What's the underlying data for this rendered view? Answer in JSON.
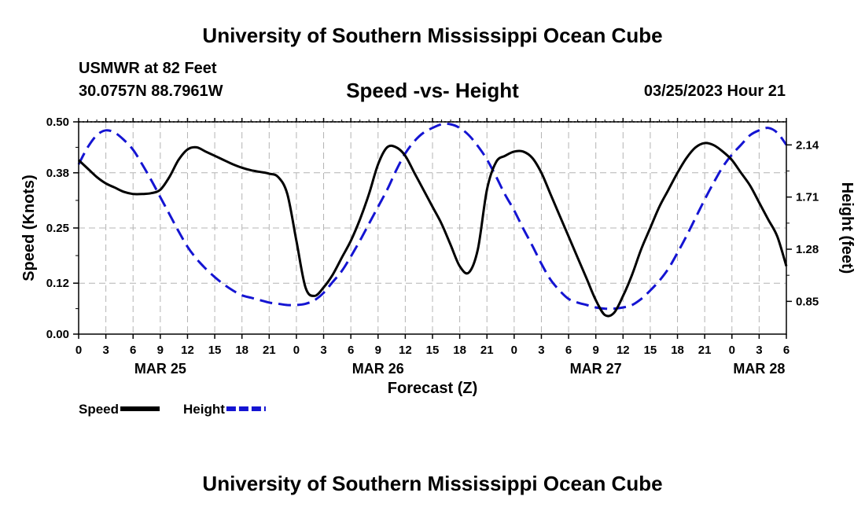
{
  "page": {
    "title_top": "University of Southern Mississippi Ocean Cube",
    "title_bottom": "University of Southern Mississippi Ocean Cube",
    "station": "USMWR at 82 Feet",
    "coords": "30.0757N  88.7961W",
    "subtitle": "Speed -vs- Height",
    "datetime": "03/25/2023 Hour 21"
  },
  "chart_data": {
    "type": "line",
    "title": "Speed -vs- Height",
    "xlabel": "Forecast (Z)",
    "ylabel": "Speed (Knots)",
    "y2label": "Height (feet)",
    "ylim": [
      0,
      0.5
    ],
    "y2lim": [
      0.58,
      2.33
    ],
    "xlim": [
      0,
      78
    ],
    "x_units": "hours since 03/25/2023 00Z",
    "yticks": [
      0.0,
      0.12,
      0.25,
      0.38,
      0.5
    ],
    "ytick_labels": [
      "0.00",
      "0.12",
      "0.25",
      "0.38",
      "0.50"
    ],
    "y2ticks": [
      0.85,
      1.28,
      1.71,
      2.14
    ],
    "y2tick_labels": [
      "0.85",
      "1.28",
      "1.71",
      "2.14"
    ],
    "xtick_hours": [
      0,
      3,
      6,
      9,
      12,
      15,
      18,
      21,
      24,
      27,
      30,
      33,
      36,
      39,
      42,
      45,
      48,
      51,
      54,
      57,
      60,
      63,
      66,
      69,
      72,
      75,
      78
    ],
    "xtick_labels": [
      "0",
      "3",
      "6",
      "9",
      "12",
      "15",
      "18",
      "21",
      "0",
      "3",
      "6",
      "9",
      "12",
      "15",
      "18",
      "21",
      "0",
      "3",
      "6",
      "9",
      "12",
      "15",
      "18",
      "21",
      "0",
      "3",
      "6"
    ],
    "date_labels": [
      {
        "hour": 9,
        "label": "MAR 25"
      },
      {
        "hour": 33,
        "label": "MAR 26"
      },
      {
        "hour": 57,
        "label": "MAR 27"
      },
      {
        "hour": 75,
        "label": "MAR 28"
      }
    ],
    "series": [
      {
        "name": "Speed",
        "axis": "left",
        "color": "#000000",
        "style": "solid",
        "x": [
          0,
          1,
          2,
          3,
          4,
          5,
          6,
          7,
          8,
          9,
          10,
          11,
          12,
          13,
          14,
          15,
          16,
          17,
          18,
          19,
          20,
          21,
          22,
          23,
          24,
          25,
          26,
          27,
          28,
          29,
          30,
          31,
          32,
          33,
          34,
          35,
          36,
          37,
          38,
          39,
          40,
          41,
          42,
          43,
          44,
          45,
          46,
          47,
          48,
          49,
          50,
          51,
          52,
          53,
          54,
          55,
          56,
          57,
          58,
          59,
          60,
          61,
          62,
          63,
          64,
          65,
          66,
          67,
          68,
          69,
          70,
          71,
          72,
          73,
          74,
          75,
          76,
          77,
          78
        ],
        "y": [
          0.41,
          0.39,
          0.37,
          0.355,
          0.345,
          0.335,
          0.33,
          0.33,
          0.332,
          0.34,
          0.37,
          0.41,
          0.435,
          0.44,
          0.43,
          0.42,
          0.41,
          0.4,
          0.392,
          0.386,
          0.382,
          0.378,
          0.37,
          0.33,
          0.22,
          0.11,
          0.09,
          0.11,
          0.14,
          0.18,
          0.22,
          0.27,
          0.33,
          0.4,
          0.44,
          0.44,
          0.42,
          0.38,
          0.34,
          0.3,
          0.26,
          0.21,
          0.16,
          0.145,
          0.2,
          0.34,
          0.405,
          0.42,
          0.43,
          0.43,
          0.415,
          0.38,
          0.33,
          0.28,
          0.23,
          0.18,
          0.13,
          0.08,
          0.045,
          0.05,
          0.09,
          0.14,
          0.2,
          0.25,
          0.3,
          0.34,
          0.38,
          0.415,
          0.44,
          0.45,
          0.445,
          0.43,
          0.41,
          0.38,
          0.35,
          0.31,
          0.27,
          0.23,
          0.16
        ]
      },
      {
        "name": "Height",
        "axis": "right",
        "color": "#1414d2",
        "style": "dashed",
        "x": [
          0,
          1,
          2,
          3,
          4,
          5,
          6,
          7,
          8,
          9,
          10,
          11,
          12,
          13,
          14,
          15,
          16,
          17,
          18,
          19,
          20,
          21,
          22,
          23,
          24,
          25,
          26,
          27,
          28,
          29,
          30,
          31,
          32,
          33,
          34,
          35,
          36,
          37,
          38,
          39,
          40,
          41,
          42,
          43,
          44,
          45,
          46,
          47,
          48,
          49,
          50,
          51,
          52,
          53,
          54,
          55,
          56,
          57,
          58,
          59,
          60,
          61,
          62,
          63,
          64,
          65,
          66,
          67,
          68,
          69,
          70,
          71,
          72,
          73,
          74,
          75,
          76,
          77,
          78
        ],
        "y": [
          1.98,
          2.12,
          2.22,
          2.26,
          2.24,
          2.18,
          2.1,
          1.98,
          1.85,
          1.71,
          1.57,
          1.43,
          1.3,
          1.2,
          1.12,
          1.05,
          0.99,
          0.94,
          0.9,
          0.88,
          0.86,
          0.84,
          0.83,
          0.82,
          0.82,
          0.83,
          0.86,
          0.92,
          1.01,
          1.1,
          1.22,
          1.35,
          1.49,
          1.63,
          1.77,
          1.93,
          2.07,
          2.17,
          2.24,
          2.28,
          2.31,
          2.31,
          2.28,
          2.22,
          2.13,
          2.02,
          1.88,
          1.73,
          1.6,
          1.45,
          1.31,
          1.16,
          1.03,
          0.94,
          0.87,
          0.84,
          0.82,
          0.8,
          0.79,
          0.79,
          0.8,
          0.82,
          0.87,
          0.94,
          1.02,
          1.12,
          1.25,
          1.39,
          1.54,
          1.69,
          1.83,
          1.96,
          2.06,
          2.14,
          2.22,
          2.26,
          2.28,
          2.24,
          2.14
        ]
      }
    ],
    "legend": [
      {
        "label": "Speed",
        "color": "#000000",
        "style": "solid"
      },
      {
        "label": "Height",
        "color": "#1414d2",
        "style": "dashed"
      }
    ],
    "legend_position": "bottom-left",
    "grid": true
  }
}
